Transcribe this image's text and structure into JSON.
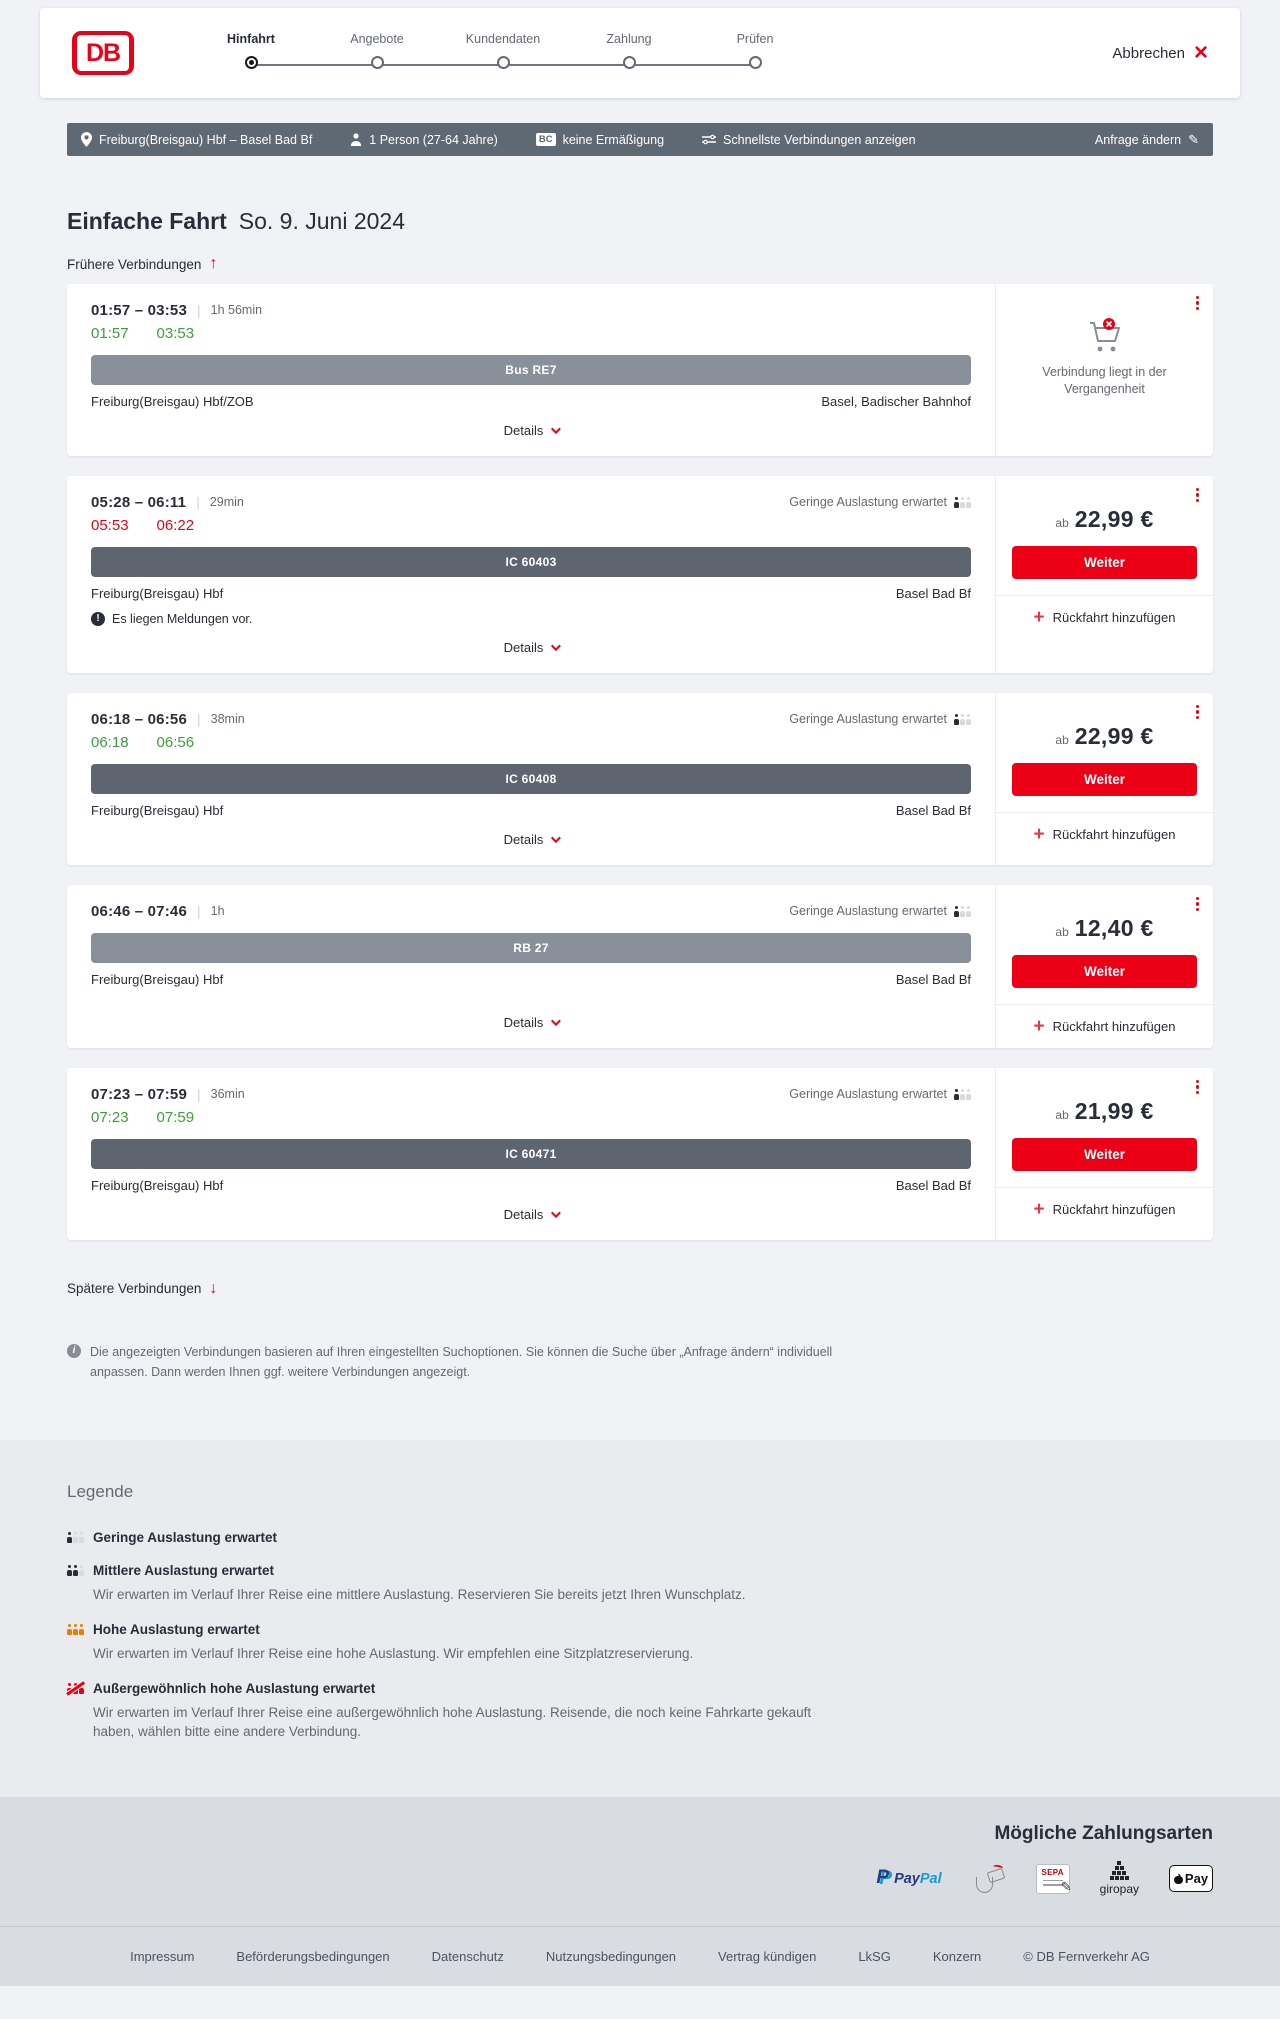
{
  "header": {
    "logo": "DB",
    "steps": [
      {
        "label": "Hinfahrt",
        "active": true
      },
      {
        "label": "Angebote",
        "active": false
      },
      {
        "label": "Kundendaten",
        "active": false
      },
      {
        "label": "Zahlung",
        "active": false
      },
      {
        "label": "Prüfen",
        "active": false
      }
    ],
    "cancel_label": "Abbrechen"
  },
  "query_bar": {
    "route": "Freiburg(Breisgau) Hbf – Basel Bad Bf",
    "passengers": "1 Person (27-64 Jahre)",
    "bahncard_badge": "BC",
    "discount": "keine Ermäßigung",
    "fastest": "Schnellste Verbindungen anzeigen",
    "change_request": "Anfrage ändern"
  },
  "page": {
    "title": "Einfache Fahrt",
    "date": "So. 9. Juni 2024",
    "earlier_link": "Frühere Verbindungen",
    "later_link": "Spätere Verbindungen"
  },
  "connections": [
    {
      "dep": "01:57",
      "arr": "03:53",
      "duration": "1h 56min",
      "actual_dep": "01:57",
      "actual_arr": "03:53",
      "actual_status": "ontime",
      "occupancy": null,
      "train": "Bus RE7",
      "train_style": "light",
      "from": "Freiburg(Breisgau) Hbf/ZOB",
      "to": "Basel, Badischer Bahnhof",
      "message": null,
      "details_label": "Details",
      "side": {
        "type": "past",
        "past_text": "Verbindung liegt in der Vergangenheit"
      }
    },
    {
      "dep": "05:28",
      "arr": "06:11",
      "duration": "29min",
      "actual_dep": "05:53",
      "actual_arr": "06:22",
      "actual_status": "delayed",
      "occupancy": "Geringe Auslastung erwartet",
      "train": "IC 60403",
      "train_style": "dark",
      "from": "Freiburg(Breisgau) Hbf",
      "to": "Basel Bad Bf",
      "message": "Es liegen Meldungen vor.",
      "details_label": "Details",
      "side": {
        "type": "price",
        "price_prefix": "ab",
        "price": "22,99 €",
        "cta": "Weiter",
        "add_return": "Rückfahrt hinzufügen"
      }
    },
    {
      "dep": "06:18",
      "arr": "06:56",
      "duration": "38min",
      "actual_dep": "06:18",
      "actual_arr": "06:56",
      "actual_status": "ontime",
      "occupancy": "Geringe Auslastung erwartet",
      "train": "IC 60408",
      "train_style": "dark",
      "from": "Freiburg(Breisgau) Hbf",
      "to": "Basel Bad Bf",
      "message": null,
      "details_label": "Details",
      "side": {
        "type": "price",
        "price_prefix": "ab",
        "price": "22,99 €",
        "cta": "Weiter",
        "add_return": "Rückfahrt hinzufügen"
      }
    },
    {
      "dep": "06:46",
      "arr": "07:46",
      "duration": "1h",
      "actual_dep": null,
      "actual_arr": null,
      "actual_status": null,
      "occupancy": "Geringe Auslastung erwartet",
      "train": "RB 27",
      "train_style": "light",
      "from": "Freiburg(Breisgau) Hbf",
      "to": "Basel Bad Bf",
      "message": null,
      "details_label": "Details",
      "side": {
        "type": "price",
        "price_prefix": "ab",
        "price": "12,40 €",
        "cta": "Weiter",
        "add_return": "Rückfahrt hinzufügen"
      }
    },
    {
      "dep": "07:23",
      "arr": "07:59",
      "duration": "36min",
      "actual_dep": "07:23",
      "actual_arr": "07:59",
      "actual_status": "ontime",
      "occupancy": "Geringe Auslastung erwartet",
      "train": "IC 60471",
      "train_style": "dark",
      "from": "Freiburg(Breisgau) Hbf",
      "to": "Basel Bad Bf",
      "message": null,
      "details_label": "Details",
      "side": {
        "type": "price",
        "price_prefix": "ab",
        "price": "21,99 €",
        "cta": "Weiter",
        "add_return": "Rückfahrt hinzufügen"
      }
    }
  ],
  "info_note": "Die angezeigten Verbindungen basieren auf Ihren eingestellten Suchoptionen. Sie können die Suche über „Anfrage ändern“ individuell anpassen. Dann werden Ihnen ggf. weitere Verbindungen angezeigt.",
  "legend": {
    "title": "Legende",
    "items": [
      {
        "level": "low",
        "label": "Geringe Auslastung erwartet",
        "desc": null
      },
      {
        "level": "medium",
        "label": "Mittlere Auslastung erwartet",
        "desc": "Wir erwarten im Verlauf Ihrer Reise eine mittlere Auslastung. Reservieren Sie bereits jetzt Ihren Wunschplatz."
      },
      {
        "level": "high",
        "label": "Hohe Auslastung erwartet",
        "desc": "Wir erwarten im Verlauf Ihrer Reise eine hohe Auslastung. Wir empfehlen eine Sitzplatzreservierung."
      },
      {
        "level": "exceptional",
        "label": "Außergewöhnlich hohe Auslastung erwartet",
        "desc": "Wir erwarten im Verlauf Ihrer Reise eine außergewöhnlich hohe Auslastung. Reisende, die noch keine Fahrkarte gekauft haben, wählen bitte eine andere Verbindung."
      }
    ]
  },
  "payment": {
    "title": "Mögliche Zahlungsarten",
    "paypal_p": "P",
    "paypal_word1": "Pay",
    "paypal_word2": "Pal",
    "sepa_label": "SEPA",
    "giropay_label": "giropay",
    "applepay_label": "Pay"
  },
  "footer": {
    "links": [
      "Impressum",
      "Beförderungsbedingungen",
      "Datenschutz",
      "Nutzungsbedingungen",
      "Vertrag kündigen",
      "LkSG",
      "Konzern"
    ],
    "copyright": "© DB Fernverkehr AG"
  },
  "colors": {
    "brand_red": "#ec0016",
    "green": "#3ea03c",
    "dark_bar": "#5f6973"
  }
}
